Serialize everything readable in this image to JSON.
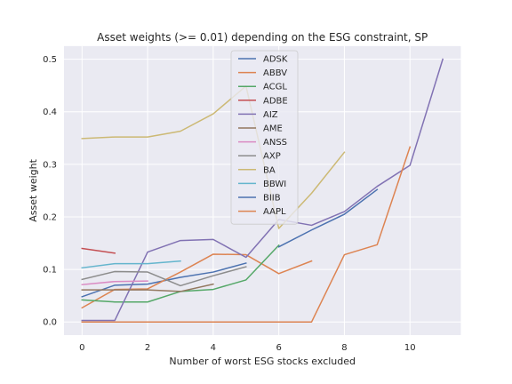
{
  "chart_data": {
    "type": "line",
    "title": "Asset weights (>= 0.01) depending on the ESG constraint, SP",
    "xlabel": "Number of worst ESG stocks excluded",
    "ylabel": "Asset weight",
    "xlim": [
      -0.55,
      11.55
    ],
    "ylim": [
      -0.025,
      0.525
    ],
    "xticks": [
      0,
      2,
      4,
      6,
      8,
      10
    ],
    "yticks": [
      0.0,
      0.1,
      0.2,
      0.3,
      0.4,
      0.5
    ],
    "ytick_labels": [
      "0.0",
      "0.1",
      "0.2",
      "0.3",
      "0.4",
      "0.5"
    ],
    "grid": true,
    "background": "#eaeaf2",
    "legend_position": "upper-center",
    "series": [
      {
        "name": "ADSK",
        "color": "#4c72b0",
        "x": [
          0,
          1,
          2,
          3,
          4,
          5
        ],
        "y": [
          0.048,
          0.07,
          0.072,
          0.085,
          0.095,
          0.112
        ]
      },
      {
        "name": "ABBV",
        "color": "#dd8452",
        "x": [
          0,
          1,
          2,
          3,
          4,
          5,
          6,
          7
        ],
        "y": [
          0.027,
          0.062,
          0.063,
          0.095,
          0.129,
          0.128,
          0.092,
          0.116
        ]
      },
      {
        "name": "ACGL",
        "color": "#55a868",
        "x": [
          0,
          1,
          2,
          3,
          4,
          5,
          6
        ],
        "y": [
          0.042,
          0.038,
          0.038,
          0.058,
          0.062,
          0.08,
          0.146
        ]
      },
      {
        "name": "ADBE",
        "color": "#c44e52",
        "x": [
          0,
          1
        ],
        "y": [
          0.14,
          0.131
        ]
      },
      {
        "name": "AIZ",
        "color": "#8172b3",
        "x": [
          0,
          1,
          2,
          3,
          4,
          5,
          6,
          7,
          8,
          9,
          10,
          11
        ],
        "y": [
          0.003,
          0.003,
          0.133,
          0.155,
          0.157,
          0.123,
          0.195,
          0.184,
          0.21,
          0.258,
          0.298,
          0.5
        ]
      },
      {
        "name": "AME",
        "color": "#937860",
        "x": [
          0,
          1,
          2,
          3,
          4
        ],
        "y": [
          0.061,
          0.061,
          0.061,
          0.058,
          0.072
        ]
      },
      {
        "name": "ANSS",
        "color": "#da8bc3",
        "x": [
          0,
          1,
          2
        ],
        "y": [
          0.071,
          0.077,
          0.078
        ]
      },
      {
        "name": "AXP",
        "color": "#8c8c8c",
        "x": [
          0,
          1,
          2,
          3,
          4,
          5
        ],
        "y": [
          0.081,
          0.096,
          0.095,
          0.069,
          0.088,
          0.105
        ]
      },
      {
        "name": "BA",
        "color": "#ccb974",
        "x": [
          0,
          1,
          2,
          3,
          4,
          5,
          6,
          7,
          8
        ],
        "y": [
          0.349,
          0.352,
          0.352,
          0.363,
          0.396,
          0.449,
          0.178,
          0.245,
          0.323
        ]
      },
      {
        "name": "BBWI",
        "color": "#64b5cd",
        "x": [
          0,
          1,
          2,
          3
        ],
        "y": [
          0.103,
          0.111,
          0.111,
          0.116
        ]
      },
      {
        "name": "BIIB",
        "color": "#4c72b0",
        "x": [
          6,
          7,
          8,
          9
        ],
        "y": [
          0.143,
          0.175,
          0.205,
          0.252
        ]
      },
      {
        "name": "AAPL",
        "color": "#dd8452",
        "x": [
          0,
          1,
          2,
          3,
          4,
          5,
          6,
          7,
          8,
          9,
          10
        ],
        "y": [
          0.0,
          0.0,
          0.0,
          0.0,
          0.0,
          0.0,
          0.0,
          0.0,
          0.128,
          0.147,
          0.333
        ]
      }
    ]
  }
}
